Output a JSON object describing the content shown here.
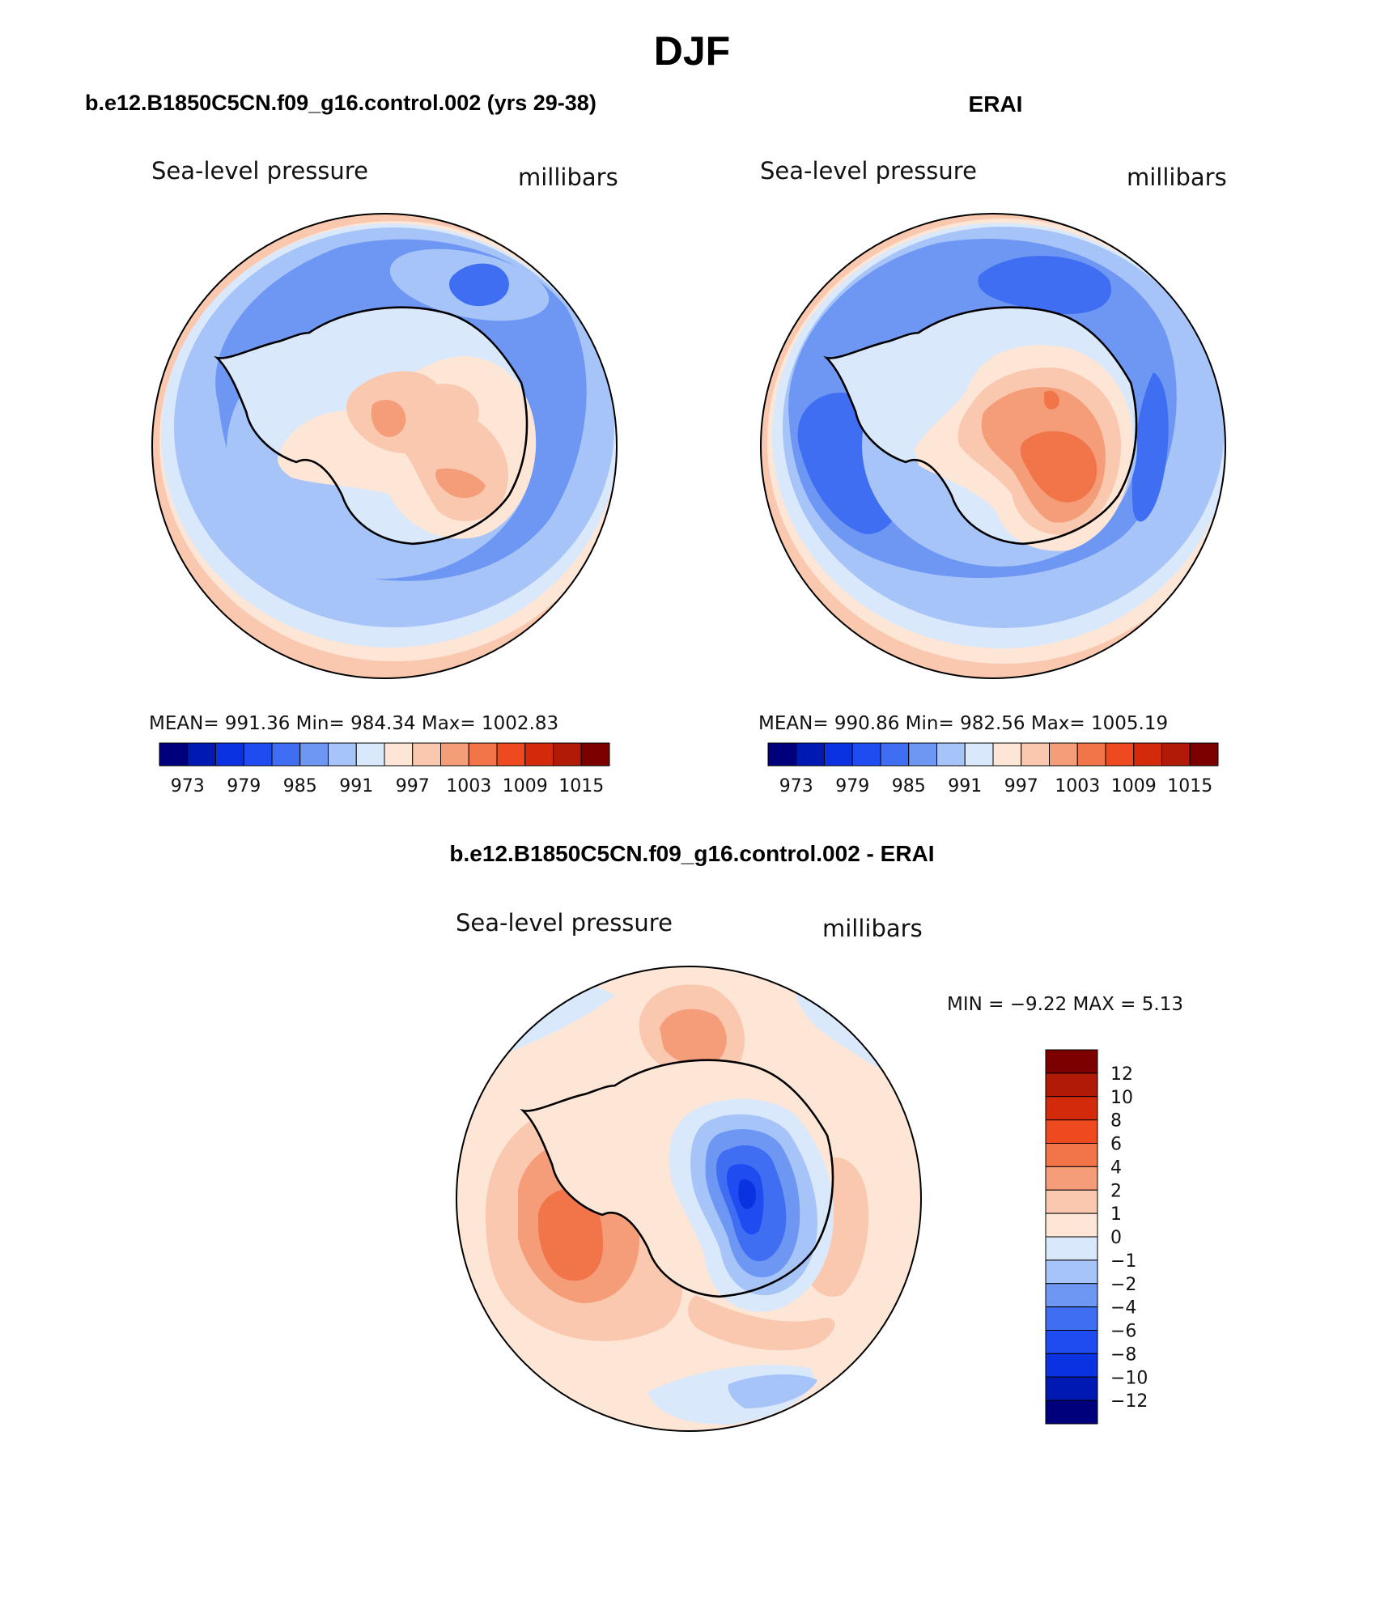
{
  "figure": {
    "title": "DJF",
    "panel_titles": {
      "model": "b.e12.B1850C5CN.f09_g16.control.002 (yrs 29-38)",
      "obs": "ERAI",
      "diff": "b.e12.B1850C5CN.f09_g16.control.002 - ERAI"
    }
  },
  "chart_data": [
    {
      "type": "filled-contour-map",
      "projection": "south-polar-stereographic",
      "name": "model",
      "variable": "Sea-level pressure",
      "units": "millibars",
      "stats_text": "MEAN= 991.36   Min= 984.34   Max= 1002.83",
      "stats": {
        "mean": 991.36,
        "min": 984.34,
        "max": 1002.83
      },
      "colorbar_ticks": [
        "973",
        "979",
        "985",
        "991",
        "997",
        "1003",
        "1009",
        "1015"
      ],
      "contour_levels": [
        973,
        976,
        979,
        982,
        985,
        988,
        991,
        994,
        997,
        1000,
        1003,
        1006,
        1009,
        1012,
        1015
      ]
    },
    {
      "type": "filled-contour-map",
      "projection": "south-polar-stereographic",
      "name": "obs",
      "variable": "Sea-level pressure",
      "units": "millibars",
      "stats_text": "MEAN= 990.86   Min= 982.56   Max= 1005.19",
      "stats": {
        "mean": 990.86,
        "min": 982.56,
        "max": 1005.19
      },
      "colorbar_ticks": [
        "973",
        "979",
        "985",
        "991",
        "997",
        "1003",
        "1009",
        "1015"
      ],
      "contour_levels": [
        973,
        976,
        979,
        982,
        985,
        988,
        991,
        994,
        997,
        1000,
        1003,
        1006,
        1009,
        1012,
        1015
      ]
    },
    {
      "type": "filled-contour-map",
      "projection": "south-polar-stereographic",
      "name": "difference",
      "variable": "Sea-level pressure",
      "units": "millibars",
      "stats_text": "MIN =   −9.22  MAX =    5.13",
      "stats": {
        "min": -9.22,
        "max": 5.13
      },
      "colorbar_ticks": [
        "12",
        "10",
        "8",
        "6",
        "4",
        "2",
        "1",
        "0",
        "−1",
        "−2",
        "−4",
        "−6",
        "−8",
        "−10",
        "−12"
      ],
      "contour_levels": [
        -12,
        -10,
        -8,
        -6,
        -4,
        -2,
        -1,
        0,
        1,
        2,
        4,
        6,
        8,
        10,
        12
      ]
    }
  ],
  "colors": {
    "palette": [
      "#00007d",
      "#0019b3",
      "#0a32e0",
      "#1f4cf0",
      "#3f6ef2",
      "#6e97f4",
      "#a6c4f8",
      "#dae8fb",
      "#fde6d6",
      "#f9c8af",
      "#f59c78",
      "#f27449",
      "#ef4a1f",
      "#d42a0c",
      "#b01a06",
      "#7d0000"
    ],
    "coastline": "#000000",
    "land_model_base": "#f6c3a6",
    "land_obs_base": "#f59c78"
  }
}
